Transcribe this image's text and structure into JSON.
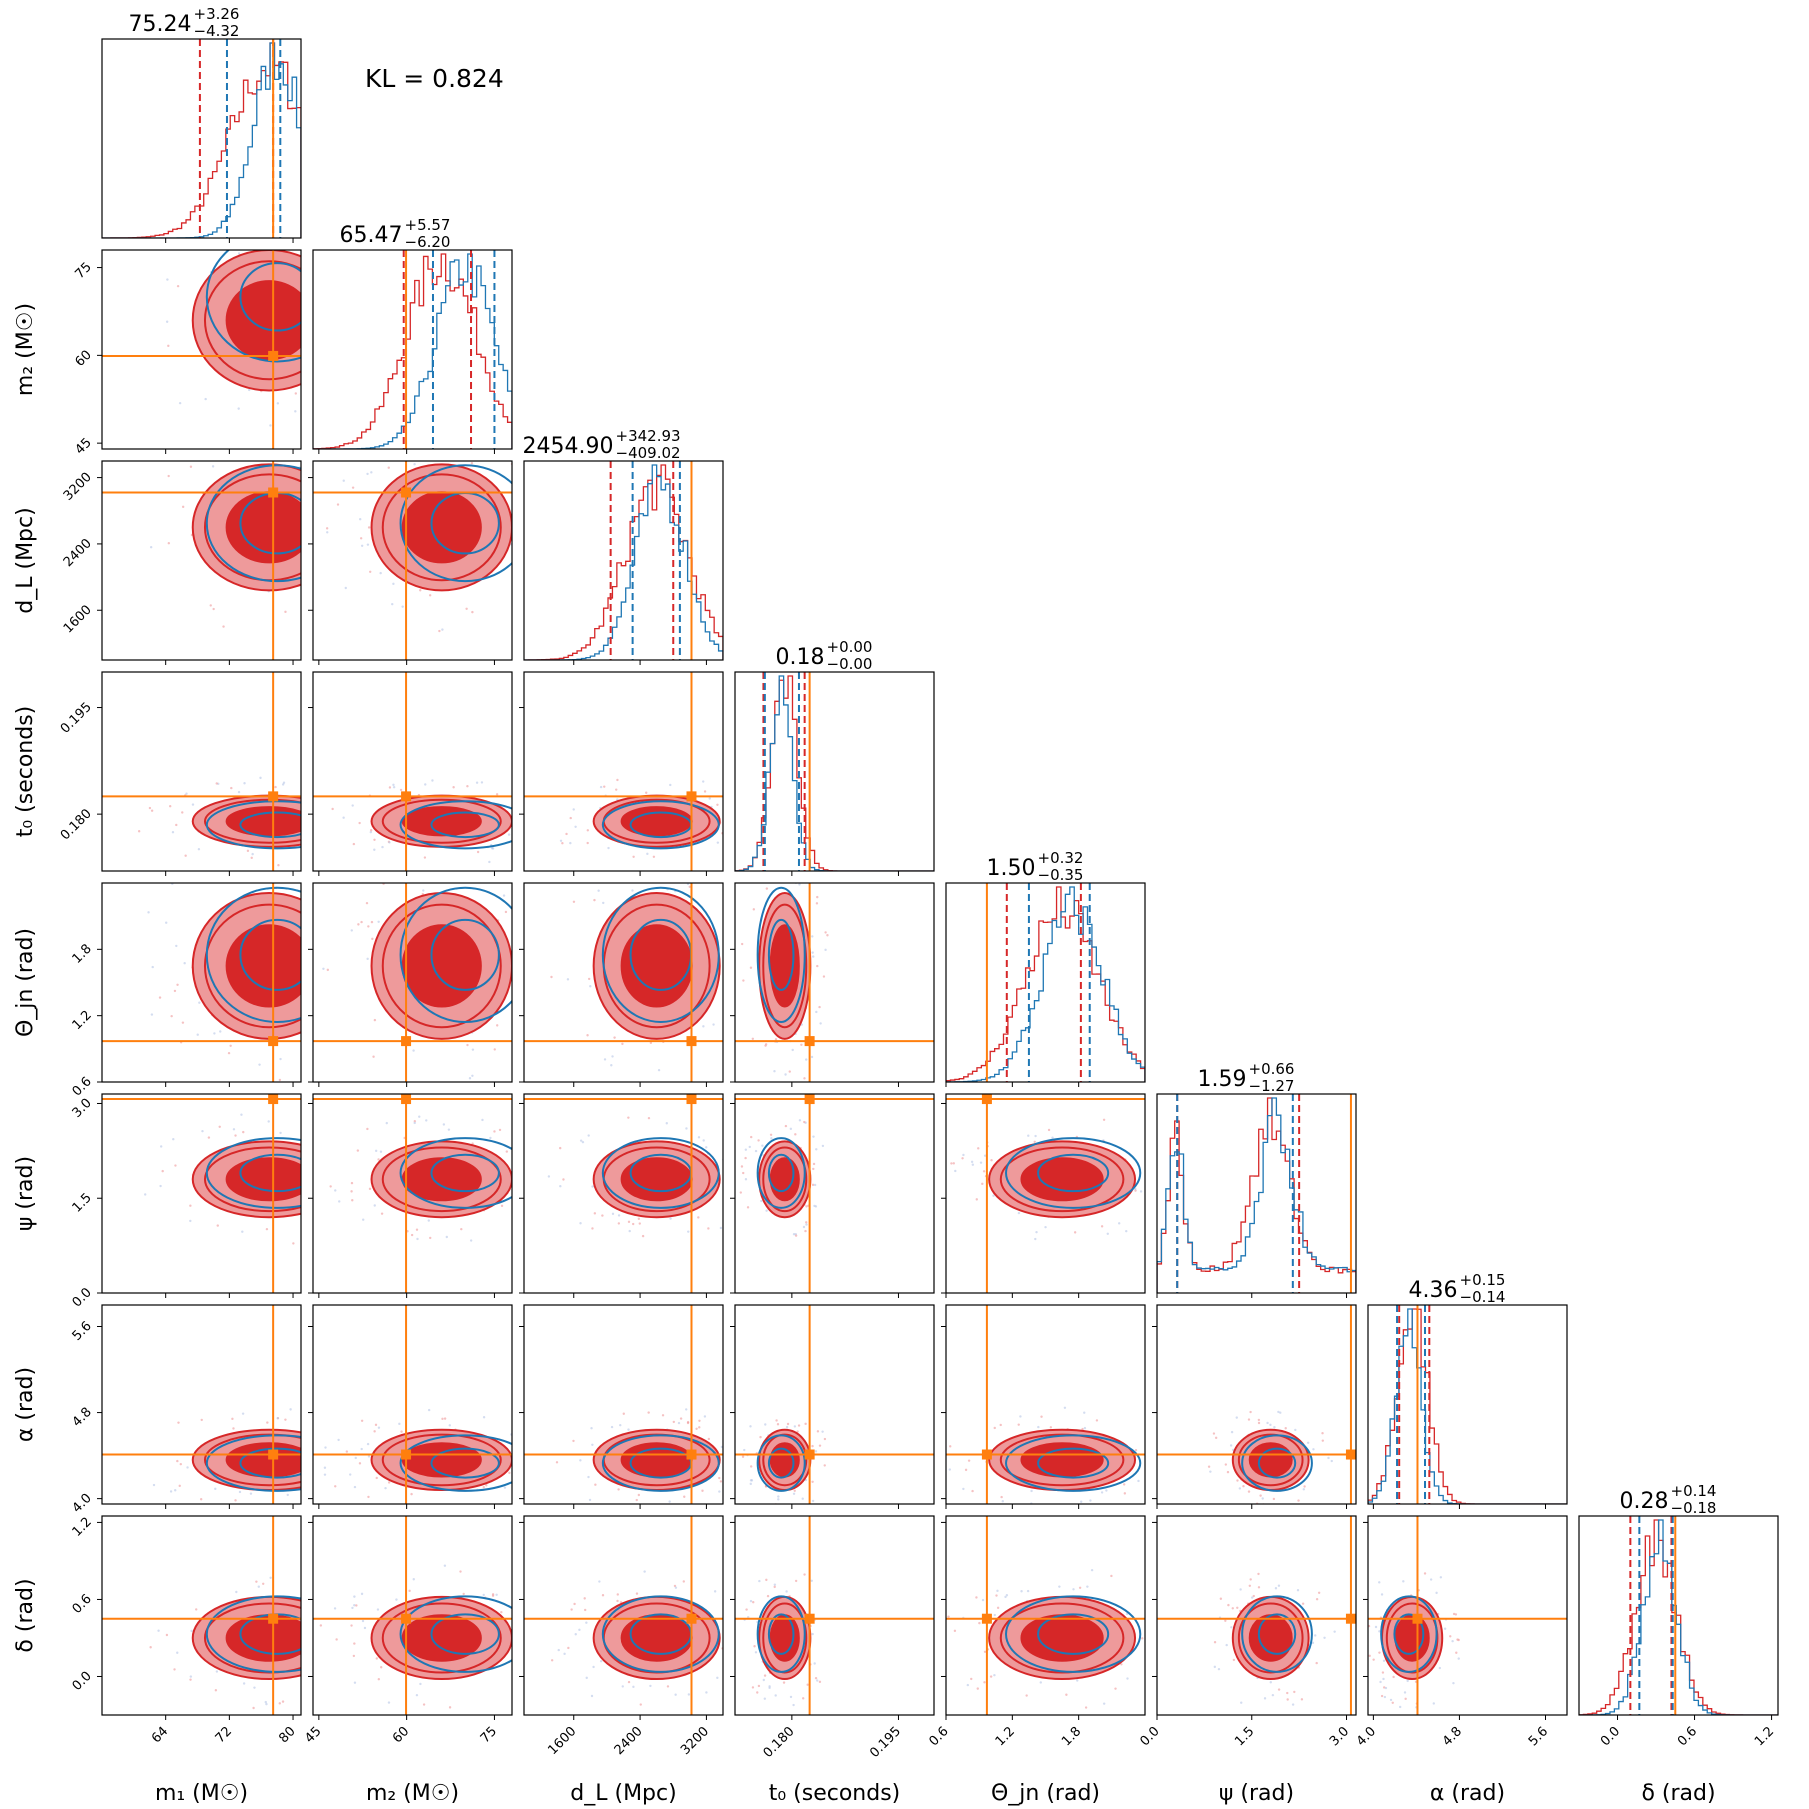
{
  "kl_text": "KL = 0.824",
  "colors": {
    "red": "#d62728",
    "red_light": "#ee9a9b",
    "blue": "#1f77b4",
    "orange": "#ff7f0e",
    "axis": "#000000"
  },
  "chart_data": {
    "type": "corner",
    "parameters": [
      {
        "label": "m₁ (M☉)",
        "range": [
          56,
          81
        ],
        "ticks": [
          64,
          72,
          80
        ],
        "truth": 77.5,
        "stats": {
          "median": "75.24",
          "plus": "+3.26",
          "minus": "−4.32"
        },
        "red_q": [
          68.3,
          77.5
        ],
        "blue_q": [
          71.7,
          78.4
        ],
        "peak_red": 77.0,
        "sd_red": 4.8,
        "peak_blue": 78.0,
        "sd_blue": 3.0
      },
      {
        "label": "m₂ (M☉)",
        "range": [
          44,
          78
        ],
        "ticks": [
          45,
          60,
          75
        ],
        "truth": 59.9,
        "stats": {
          "median": "65.47",
          "plus": "+5.57",
          "minus": "−6.20"
        },
        "red_q": [
          59.5,
          71.0
        ],
        "blue_q": [
          64.5,
          75.0
        ],
        "peak_red": 66.0,
        "sd_red": 6.0,
        "peak_blue": 70.0,
        "sd_blue": 5.0
      },
      {
        "label": "d_L (Mpc)",
        "range": [
          1000,
          3400
        ],
        "ticks": [
          1600,
          2400,
          3200
        ],
        "truth": 3020,
        "stats": {
          "median": "2454.90",
          "plus": "+342.93",
          "minus": "−409.02"
        },
        "red_q": [
          2045,
          2800
        ],
        "blue_q": [
          2310,
          2880
        ],
        "peak_red": 2600,
        "sd_red": 380,
        "peak_blue": 2650,
        "sd_blue": 300
      },
      {
        "label": "t₀ (seconds)",
        "range": [
          0.172,
          0.2
        ],
        "ticks": [
          0.18,
          0.195
        ],
        "tick_labels": [
          "0.180",
          "0.195"
        ],
        "truth": 0.1825,
        "stats": {
          "median": "0.18",
          "plus": "+0.00",
          "minus": "−0.00"
        },
        "red_q": [
          0.176,
          0.1818
        ],
        "blue_q": [
          0.1762,
          0.181
        ],
        "peak_red": 0.179,
        "sd_red": 0.0018,
        "peak_blue": 0.1785,
        "sd_blue": 0.0016
      },
      {
        "label": "Θ_jn (rad)",
        "range": [
          0.6,
          2.4
        ],
        "ticks": [
          0.6,
          1.2,
          1.8
        ],
        "tick_labels": [
          "0.6",
          "1.2",
          "1.8"
        ],
        "truth": 0.97,
        "stats": {
          "median": "1.50",
          "plus": "+0.32",
          "minus": "−0.35"
        },
        "red_q": [
          1.15,
          1.82
        ],
        "blue_q": [
          1.35,
          1.9
        ],
        "peak_red": 1.65,
        "sd_red": 0.33,
        "peak_blue": 1.75,
        "sd_blue": 0.28
      },
      {
        "label": "ψ (rad)",
        "range": [
          0.0,
          3.15
        ],
        "ticks": [
          0.0,
          1.5,
          3.0
        ],
        "tick_labels": [
          "0.0",
          "1.5",
          "3.0"
        ],
        "truth": 3.07,
        "stats": {
          "median": "1.59",
          "plus": "+0.66",
          "minus": "−1.27"
        },
        "red_q": [
          0.32,
          2.25
        ],
        "blue_q": [
          0.32,
          2.15
        ],
        "peak_red": 1.8,
        "sd_red": 0.3,
        "peak_blue": 1.9,
        "sd_blue": 0.25
      },
      {
        "label": "α (rad)",
        "range": [
          3.95,
          5.8
        ],
        "ticks": [
          4.0,
          4.8,
          5.6
        ],
        "tick_labels": [
          "4.0",
          "4.8",
          "5.6"
        ],
        "truth": 4.41,
        "stats": {
          "median": "4.36",
          "plus": "+0.15",
          "minus": "−0.14"
        },
        "red_q": [
          4.24,
          4.52
        ],
        "blue_q": [
          4.22,
          4.48
        ],
        "peak_red": 4.36,
        "sd_red": 0.14,
        "peak_blue": 4.33,
        "sd_blue": 0.12
      },
      {
        "label": "δ (rad)",
        "range": [
          -0.3,
          1.25
        ],
        "ticks": [
          0.0,
          0.6,
          1.2
        ],
        "tick_labels": [
          "0.0",
          "0.6",
          "1.2"
        ],
        "truth": 0.45,
        "stats": {
          "median": "0.28",
          "plus": "+0.14",
          "minus": "−0.18"
        },
        "red_q": [
          0.1,
          0.42
        ],
        "blue_q": [
          0.17,
          0.43
        ],
        "peak_red": 0.3,
        "sd_red": 0.16,
        "peak_blue": 0.33,
        "sd_blue": 0.13
      }
    ],
    "series": [
      {
        "color": "red",
        "style": "filled contours"
      },
      {
        "color": "blue",
        "style": "line contours"
      }
    ]
  }
}
